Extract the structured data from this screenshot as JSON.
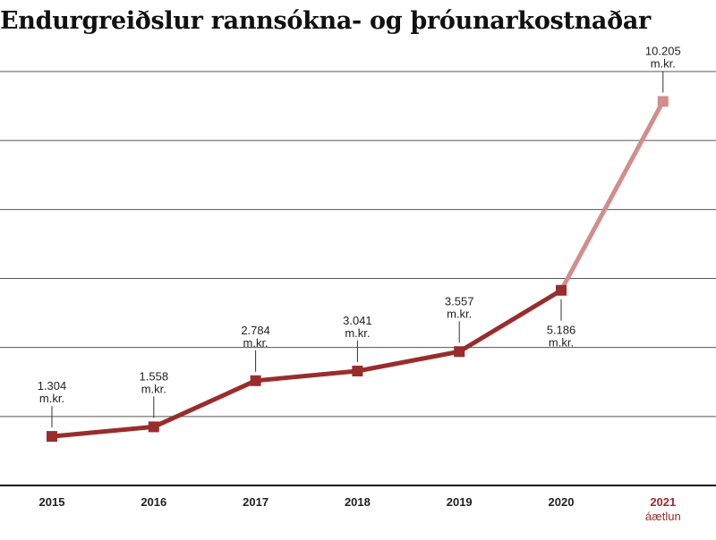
{
  "chart_data": {
    "type": "line",
    "title": "Endurgreiðslur rannsókna- og þróunarkostnaðar",
    "xlabel": "",
    "ylabel": "",
    "ylim": [
      0,
      11000
    ],
    "grid": true,
    "categories": [
      "2015",
      "2016",
      "2017",
      "2018",
      "2019",
      "2020",
      "2021"
    ],
    "category_notes": [
      "",
      "",
      "",
      "",
      "",
      "",
      "áætlun"
    ],
    "series": [
      {
        "values": [
          1304,
          1558,
          2784,
          3041,
          3557,
          5186,
          10205
        ],
        "color": "#9b2c2c",
        "projection_color": "#d28d8d",
        "projection_from_index": 5
      }
    ],
    "data_labels": [
      {
        "value": "1.304",
        "unit": "m.kr.",
        "position": "above"
      },
      {
        "value": "1.558",
        "unit": "m.kr.",
        "position": "above"
      },
      {
        "value": "2.784",
        "unit": "m.kr.",
        "position": "above"
      },
      {
        "value": "3.041",
        "unit": "m.kr.",
        "position": "above"
      },
      {
        "value": "3.557",
        "unit": "m.kr.",
        "position": "above"
      },
      {
        "value": "5.186",
        "unit": "m.kr.",
        "position": "below"
      },
      {
        "value": "10.205",
        "unit": "m.kr.",
        "position": "above"
      }
    ]
  }
}
